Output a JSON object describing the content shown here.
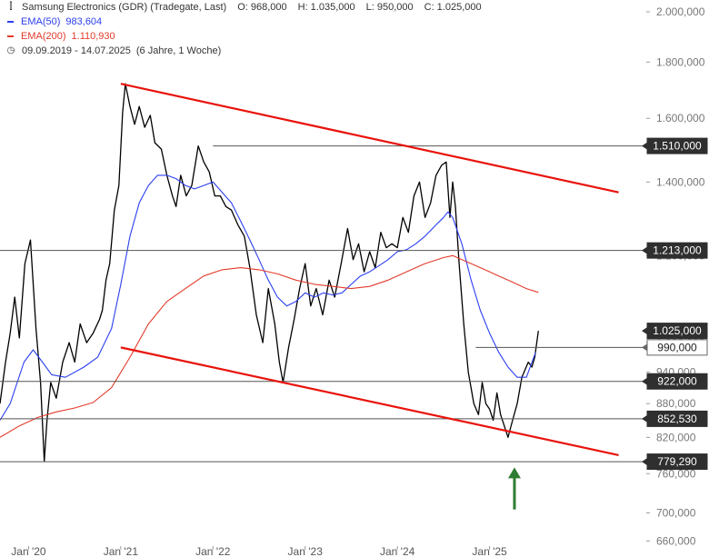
{
  "chart_data": {
    "type": "line",
    "title": "Samsung Electronics (GDR) (Tradegate, Last)",
    "ohlc": {
      "open": "O: 968,000",
      "high": "H: 1.035,000",
      "low": "L: 950,000",
      "close": "C: 1.025,000"
    },
    "date_range": "09.09.2019 - 14.07.2025",
    "period": "(6 Jahre, 1 Woche)",
    "x_tick_labels": [
      "Jan '20",
      "Jan '21",
      "Jan '22",
      "Jan '23",
      "Jan '24",
      "Jan '25"
    ],
    "x_ticks": [
      2020.0,
      2021.0,
      2022.0,
      2023.0,
      2024.0,
      2025.0
    ],
    "xlim": [
      2019.69,
      2026.7
    ],
    "y_tick_labels": [
      "2.000,000",
      "1.800,000",
      "1.600,000",
      "1.400,000",
      "1.200,000",
      "1.000,000",
      "940,000",
      "880,000",
      "820,000",
      "760,000",
      "700,000",
      "660,000"
    ],
    "y_ticks": [
      2000000,
      1800000,
      1600000,
      1400000,
      1200000,
      1000000,
      940000,
      880000,
      820000,
      760000,
      700000,
      660000
    ],
    "ylim": [
      648000,
      2050000
    ],
    "y_scale": "log",
    "grid": false,
    "series": [
      {
        "name": "Samsung Electronics (GDR)",
        "color": "#000000",
        "x": [
          2019.69,
          2019.75,
          2019.8,
          2019.85,
          2019.9,
          2019.96,
          2020.02,
          2020.08,
          2020.13,
          2020.17,
          2020.2,
          2020.24,
          2020.3,
          2020.37,
          2020.44,
          2020.5,
          2020.56,
          2020.63,
          2020.7,
          2020.77,
          2020.8,
          2020.84,
          2020.88,
          2020.93,
          2020.98,
          2021.02,
          2021.05,
          2021.1,
          2021.15,
          2021.2,
          2021.26,
          2021.32,
          2021.37,
          2021.44,
          2021.5,
          2021.56,
          2021.6,
          2021.65,
          2021.71,
          2021.77,
          2021.84,
          2021.9,
          2021.96,
          2022.02,
          2022.08,
          2022.14,
          2022.2,
          2022.27,
          2022.34,
          2022.4,
          2022.47,
          2022.54,
          2022.6,
          2022.67,
          2022.72,
          2022.76,
          2022.82,
          2022.88,
          2022.94,
          2023.0,
          2023.06,
          2023.12,
          2023.19,
          2023.26,
          2023.32,
          2023.39,
          2023.46,
          2023.52,
          2023.58,
          2023.64,
          2023.7,
          2023.76,
          2023.82,
          2023.88,
          2023.94,
          2024.0,
          2024.06,
          2024.12,
          2024.18,
          2024.24,
          2024.3,
          2024.36,
          2024.42,
          2024.48,
          2024.53,
          2024.57,
          2024.6,
          2024.63,
          2024.67,
          2024.72,
          2024.77,
          2024.83,
          2024.88,
          2024.92,
          2024.96,
          2025.0,
          2025.04,
          2025.08,
          2025.12,
          2025.16,
          2025.2,
          2025.25,
          2025.3,
          2025.35,
          2025.42,
          2025.46,
          2025.49,
          2025.53
        ],
        "y": [
          880000,
          960000,
          1020000,
          1100000,
          1010000,
          1180000,
          1240000,
          1030000,
          920000,
          780000,
          850000,
          920000,
          890000,
          960000,
          1000000,
          960000,
          1040000,
          1000000,
          1020000,
          1050000,
          1070000,
          1140000,
          1180000,
          1320000,
          1390000,
          1620000,
          1720000,
          1640000,
          1580000,
          1640000,
          1570000,
          1610000,
          1520000,
          1500000,
          1420000,
          1360000,
          1330000,
          1420000,
          1360000,
          1390000,
          1510000,
          1460000,
          1430000,
          1360000,
          1360000,
          1330000,
          1320000,
          1280000,
          1250000,
          1170000,
          1060000,
          1000000,
          1120000,
          1040000,
          960000,
          920000,
          990000,
          1050000,
          1120000,
          1180000,
          1080000,
          1120000,
          1060000,
          1140000,
          1100000,
          1180000,
          1270000,
          1190000,
          1230000,
          1160000,
          1210000,
          1170000,
          1260000,
          1220000,
          1230000,
          1220000,
          1300000,
          1260000,
          1360000,
          1400000,
          1300000,
          1340000,
          1420000,
          1450000,
          1460000,
          1300000,
          1400000,
          1330000,
          1180000,
          1040000,
          940000,
          880000,
          860000,
          920000,
          880000,
          870000,
          850000,
          900000,
          860000,
          840000,
          820000,
          850000,
          880000,
          930000,
          960000,
          950000,
          970000,
          1025000
        ]
      },
      {
        "name": "EMA(50)",
        "value_label": "983,604",
        "color": "#2b3ff0",
        "x": [
          2019.69,
          2019.8,
          2019.95,
          2020.05,
          2020.15,
          2020.25,
          2020.4,
          2020.6,
          2020.75,
          2020.9,
          2021.0,
          2021.1,
          2021.2,
          2021.3,
          2021.4,
          2021.5,
          2021.6,
          2021.7,
          2021.8,
          2021.9,
          2022.0,
          2022.1,
          2022.2,
          2022.3,
          2022.4,
          2022.5,
          2022.6,
          2022.7,
          2022.8,
          2022.9,
          2023.0,
          2023.1,
          2023.2,
          2023.3,
          2023.4,
          2023.5,
          2023.6,
          2023.7,
          2023.8,
          2023.9,
          2024.0,
          2024.1,
          2024.2,
          2024.3,
          2024.4,
          2024.5,
          2024.55,
          2024.6,
          2024.7,
          2024.8,
          2024.9,
          2025.0,
          2025.1,
          2025.2,
          2025.3,
          2025.4,
          2025.5
        ],
        "y": [
          850000,
          880000,
          960000,
          985000,
          960000,
          935000,
          930000,
          950000,
          970000,
          1030000,
          1130000,
          1250000,
          1340000,
          1390000,
          1420000,
          1420000,
          1410000,
          1390000,
          1380000,
          1390000,
          1400000,
          1370000,
          1340000,
          1290000,
          1240000,
          1190000,
          1140000,
          1100000,
          1080000,
          1090000,
          1110000,
          1100000,
          1110000,
          1105000,
          1110000,
          1130000,
          1150000,
          1160000,
          1175000,
          1190000,
          1210000,
          1215000,
          1230000,
          1250000,
          1275000,
          1300000,
          1315000,
          1300000,
          1230000,
          1140000,
          1070000,
          1020000,
          980000,
          950000,
          930000,
          930000,
          980000
        ]
      },
      {
        "name": "EMA(200)",
        "value_label": "1.110,930",
        "color": "#e23a2a",
        "x": [
          2019.69,
          2019.9,
          2020.1,
          2020.3,
          2020.5,
          2020.7,
          2020.9,
          2021.1,
          2021.3,
          2021.5,
          2021.7,
          2021.9,
          2022.1,
          2022.3,
          2022.5,
          2022.7,
          2022.9,
          2023.1,
          2023.3,
          2023.5,
          2023.7,
          2023.9,
          2024.1,
          2024.3,
          2024.5,
          2024.6,
          2024.7,
          2024.8,
          2024.9,
          2025.0,
          2025.1,
          2025.2,
          2025.3,
          2025.4,
          2025.53
        ],
        "y": [
          820000,
          840000,
          855000,
          865000,
          872000,
          882000,
          910000,
          970000,
          1040000,
          1090000,
          1120000,
          1150000,
          1165000,
          1170000,
          1165000,
          1155000,
          1140000,
          1130000,
          1125000,
          1120000,
          1125000,
          1140000,
          1160000,
          1180000,
          1195000,
          1200000,
          1190000,
          1180000,
          1170000,
          1160000,
          1150000,
          1140000,
          1130000,
          1120000,
          1111000
        ]
      }
    ],
    "trend_lines": [
      {
        "color": "#e8130b",
        "points": [
          [
            2021.0,
            1720000
          ],
          [
            2026.4,
            1370000
          ]
        ]
      },
      {
        "color": "#e8130b",
        "points": [
          [
            2021.0,
            990000
          ],
          [
            2026.4,
            790000
          ]
        ]
      }
    ],
    "horizontal_levels": [
      {
        "label": "1.510,000",
        "value": 1510000,
        "x_start": 2022.0,
        "style": "dark"
      },
      {
        "label": "1.213,000",
        "value": 1213000,
        "x_start": 2019.69,
        "style": "dark"
      },
      {
        "label": "1.025,000",
        "value": 1025000,
        "x_start": null,
        "style": "dark"
      },
      {
        "label": "990,000",
        "value": 990000,
        "x_start": 2024.85,
        "style": "outline"
      },
      {
        "label": "922,000",
        "value": 922000,
        "x_start": 2019.69,
        "style": "dark"
      },
      {
        "label": "852,530",
        "value": 852530,
        "x_start": 2019.69,
        "style": "dark"
      },
      {
        "label": "779,290",
        "value": 779290,
        "x_start": 2019.69,
        "style": "dark"
      }
    ],
    "annotations": [
      {
        "type": "arrow-up",
        "color": "#2e7d32",
        "x": 2025.27,
        "y_from": 705000,
        "y_to": 770000
      }
    ]
  }
}
